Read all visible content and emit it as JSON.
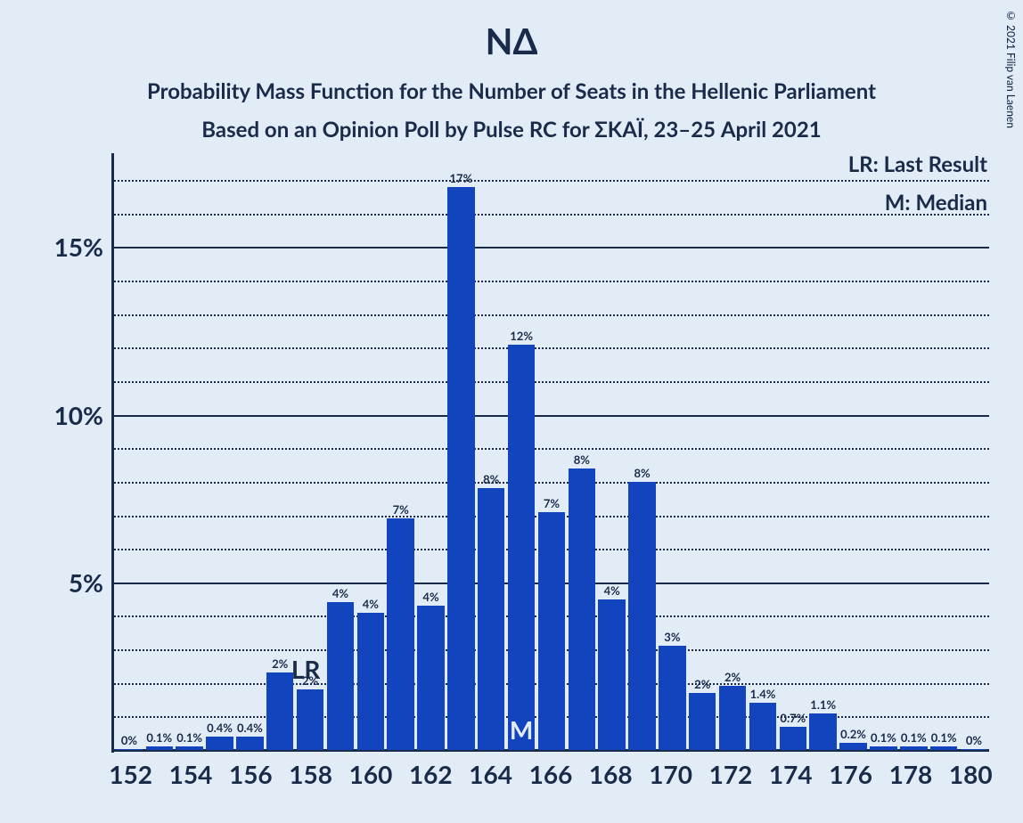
{
  "copyright": "© 2021 Filip van Laenen",
  "title": "ΝΔ",
  "subtitle1": "Probability Mass Function for the Number of Seats in the Hellenic Parliament",
  "subtitle2": "Based on an Opinion Poll by Pulse RC for ΣΚΑΪ, 23–25 April 2021",
  "legend": {
    "lr": "LR: Last Result",
    "m": "M: Median"
  },
  "chart": {
    "type": "bar",
    "background_color": "#e2ecf7",
    "bar_color": "#1244bd",
    "text_color": "#1a2b4a",
    "grid_color": "#1a2b4a",
    "y_major_ticks": [
      5,
      10,
      15
    ],
    "y_minor_step": 1,
    "y_max": 17.8,
    "x_ticks": [
      152,
      154,
      156,
      158,
      160,
      162,
      164,
      166,
      168,
      170,
      172,
      174,
      176,
      178,
      180
    ],
    "bars": [
      {
        "x": 152,
        "label": "0%",
        "v": 0.02
      },
      {
        "x": 153,
        "label": "0.1%",
        "v": 0.1
      },
      {
        "x": 154,
        "label": "0.1%",
        "v": 0.1
      },
      {
        "x": 155,
        "label": "0.4%",
        "v": 0.4
      },
      {
        "x": 156,
        "label": "0.4%",
        "v": 0.4
      },
      {
        "x": 157,
        "label": "2%",
        "v": 2.3
      },
      {
        "x": 158,
        "label": "2%",
        "v": 1.8
      },
      {
        "x": 159,
        "label": "4%",
        "v": 4.4
      },
      {
        "x": 160,
        "label": "4%",
        "v": 4.1
      },
      {
        "x": 161,
        "label": "7%",
        "v": 6.9
      },
      {
        "x": 162,
        "label": "4%",
        "v": 4.3
      },
      {
        "x": 163,
        "label": "17%",
        "v": 16.8
      },
      {
        "x": 164,
        "label": "8%",
        "v": 7.8
      },
      {
        "x": 165,
        "label": "12%",
        "v": 12.1
      },
      {
        "x": 166,
        "label": "7%",
        "v": 7.1
      },
      {
        "x": 167,
        "label": "8%",
        "v": 8.4
      },
      {
        "x": 168,
        "label": "4%",
        "v": 4.5
      },
      {
        "x": 169,
        "label": "8%",
        "v": 8.0
      },
      {
        "x": 170,
        "label": "3%",
        "v": 3.1
      },
      {
        "x": 171,
        "label": "2%",
        "v": 1.7
      },
      {
        "x": 172,
        "label": "2%",
        "v": 1.9
      },
      {
        "x": 173,
        "label": "1.4%",
        "v": 1.4
      },
      {
        "x": 174,
        "label": "0.7%",
        "v": 0.7
      },
      {
        "x": 175,
        "label": "1.1%",
        "v": 1.1
      },
      {
        "x": 176,
        "label": "0.2%",
        "v": 0.2
      },
      {
        "x": 177,
        "label": "0.1%",
        "v": 0.1
      },
      {
        "x": 178,
        "label": "0.1%",
        "v": 0.1
      },
      {
        "x": 179,
        "label": "0.1%",
        "v": 0.1
      },
      {
        "x": 180,
        "label": "0%",
        "v": 0.02
      }
    ],
    "lr_index": 6,
    "lr_text": "LR",
    "median_index": 13,
    "median_text": "M"
  }
}
